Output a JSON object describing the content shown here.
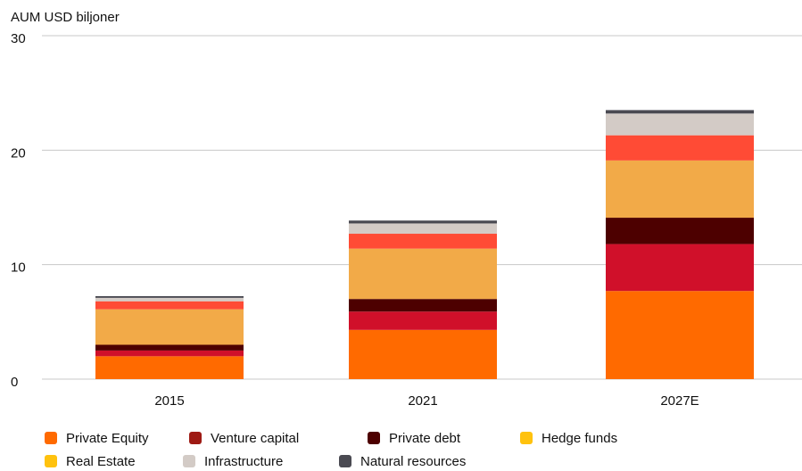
{
  "chart_data": {
    "type": "stacked_bar",
    "y_label": "AUM USD biljoner",
    "categories": [
      "2015",
      "2021",
      "2027E"
    ],
    "series": [
      {
        "name": "Private Equity",
        "color": "#ff6a00",
        "legend_color": "#ff6a00",
        "values": [
          2.0,
          4.3,
          7.7
        ]
      },
      {
        "name": "Venture capital",
        "color": "#d0102a",
        "legend_color": "#9e1a14",
        "values": [
          0.5,
          1.6,
          4.1
        ]
      },
      {
        "name": "Private debt",
        "color": "#4d0000",
        "legend_color": "#4d0000",
        "values": [
          0.5,
          1.1,
          2.3
        ]
      },
      {
        "name": "Hedge funds",
        "color": "#f2aa48",
        "legend_color": "#ffc20e",
        "values": [
          3.1,
          4.4,
          5.0
        ]
      },
      {
        "name": "Real Estate",
        "color": "#ff4b35",
        "legend_color": "#ffc20e",
        "values": [
          0.7,
          1.3,
          2.2
        ]
      },
      {
        "name": "Infrastructure",
        "color": "#d3cbc6",
        "legend_color": "#d3cbc6",
        "values": [
          0.3,
          0.9,
          1.9
        ]
      },
      {
        "name": "Natural resources",
        "color": "#4a4a52",
        "legend_color": "#4a4a52",
        "values": [
          0.15,
          0.25,
          0.3
        ]
      }
    ],
    "ylim": [
      0,
      30
    ],
    "yticks": [
      0,
      10,
      20,
      30
    ],
    "grid": true,
    "legend": "bottom"
  }
}
